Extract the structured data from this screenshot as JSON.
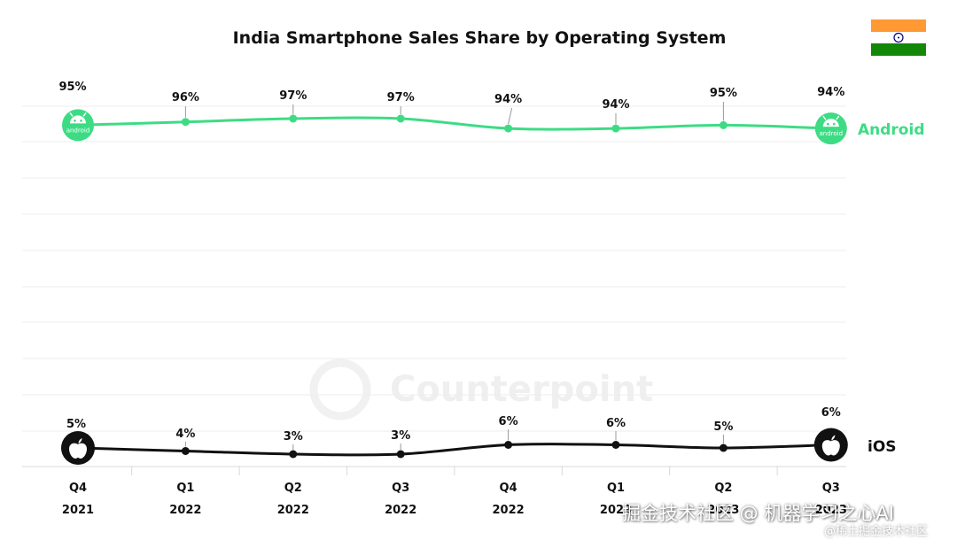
{
  "chart_data": {
    "type": "line",
    "title": "India Smartphone Sales Share by Operating System",
    "categories": [
      {
        "quarter": "Q4",
        "year": "2021"
      },
      {
        "quarter": "Q1",
        "year": "2022"
      },
      {
        "quarter": "Q2",
        "year": "2022"
      },
      {
        "quarter": "Q3",
        "year": "2022"
      },
      {
        "quarter": "Q4",
        "year": "2022"
      },
      {
        "quarter": "Q1",
        "year": "2023"
      },
      {
        "quarter": "Q2",
        "year": "2023"
      },
      {
        "quarter": "Q3",
        "year": "2023"
      }
    ],
    "series": [
      {
        "name": "Android",
        "color": "#3ddc84",
        "values": [
          95,
          96,
          97,
          97,
          94,
          94,
          95,
          94
        ],
        "labels": [
          "95%",
          "96%",
          "97%",
          "97%",
          "94%",
          "94%",
          "95%",
          "94%"
        ]
      },
      {
        "name": "iOS",
        "color": "#111111",
        "values": [
          5,
          4,
          3,
          3,
          6,
          6,
          5,
          6
        ],
        "labels": [
          "5%",
          "4%",
          "3%",
          "3%",
          "6%",
          "6%",
          "5%",
          "6%"
        ]
      }
    ],
    "grid": true,
    "legend": "right"
  },
  "watermark": {
    "brand": "Counterpoint",
    "main": "掘金技术社区 @ 机器学习之心AI",
    "sub": "@稀土掘金技术社区"
  },
  "badges": {
    "android_text": "android",
    "flag": "india-flag"
  }
}
